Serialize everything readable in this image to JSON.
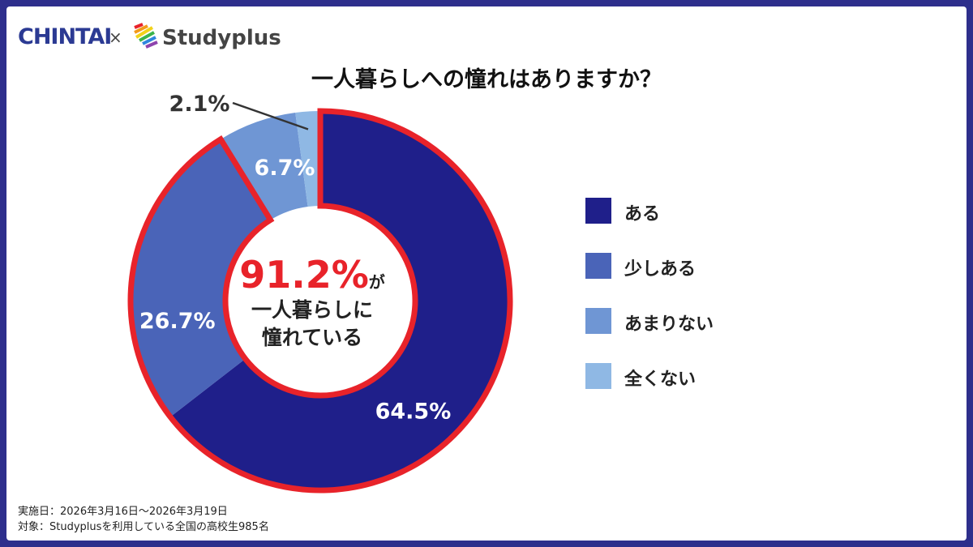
{
  "logos": {
    "chintai": "CHINTAI",
    "times": "×",
    "studyplus": "Studyplus"
  },
  "chart_data": {
    "type": "pie",
    "title": "一人暮らしへの憧れはありますか？",
    "categories": [
      "ある",
      "少しある",
      "あまりない",
      "全くない"
    ],
    "values": [
      64.5,
      26.7,
      6.7,
      2.1
    ],
    "value_labels": [
      "64.5%",
      "26.7%",
      "6.7%",
      "2.1%"
    ],
    "colors": [
      "#1f1f8a",
      "#4a64b8",
      "#6f96d4",
      "#8fb8e4"
    ],
    "highlight_color": "#e8232a",
    "legend_position": "right",
    "style": "donut"
  },
  "center": {
    "highlight": "91.2%",
    "suffix": "が",
    "line1": "一人暮らしに",
    "line2": "憧れている"
  },
  "footnotes": {
    "date": "実施日：2026年3月16日〜2026年3月19日",
    "target": "対象：Studyplusを利用している全国の高校生985名"
  }
}
